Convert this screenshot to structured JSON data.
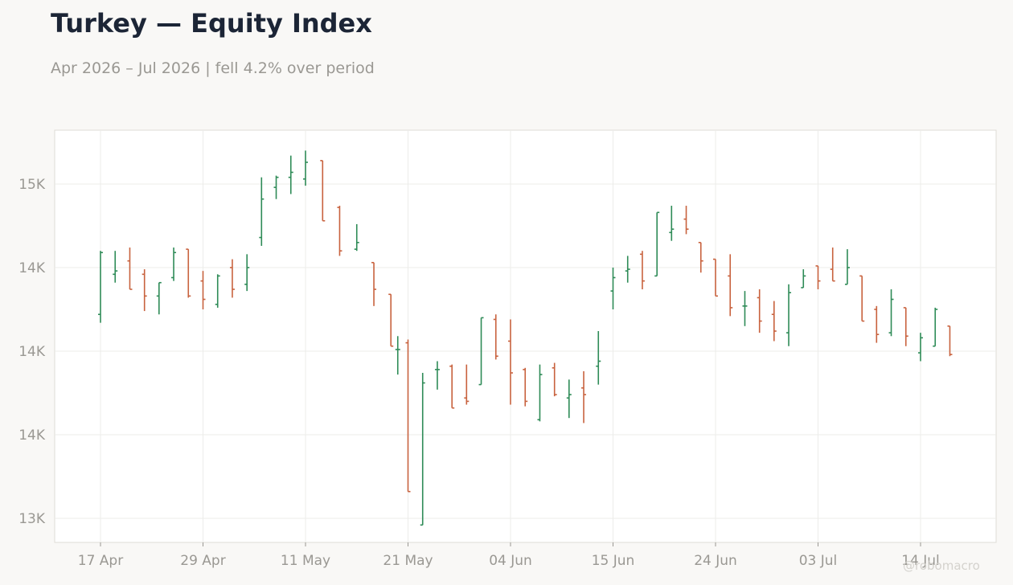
{
  "title": "Turkey — Equity Index",
  "subtitle": "Apr 2026 – Jul 2026 | fell 4.2% over period",
  "watermark": "@robomacro",
  "colors": {
    "up": "#2e8b57",
    "down": "#c8623e",
    "background": "#f9f8f6",
    "grid": "#ececea"
  },
  "chart_data": {
    "type": "ohlc",
    "title": "Turkey — Equity Index",
    "ylim": [
      12950,
      15550
    ],
    "y_ticks": [
      13000,
      13500,
      14000,
      14500,
      15000
    ],
    "y_tick_labels": [
      "13K",
      "14K",
      "14K",
      "14K",
      "15K"
    ],
    "x_ticks": [
      "17 Apr",
      "29 Apr",
      "11 May",
      "21 May",
      "04 Jun",
      "15 Jun",
      "24 Jun",
      "03 Jul",
      "14 Jul"
    ],
    "grid": true,
    "bars": [
      {
        "tick": 0,
        "offset": 0.0,
        "open": 14220,
        "high": 14600,
        "low": 14170,
        "close": 14590
      },
      {
        "tick": 0,
        "offset": 0.143,
        "open": 14460,
        "high": 14600,
        "low": 14410,
        "close": 14480
      },
      {
        "tick": 0,
        "offset": 0.286,
        "open": 14540,
        "high": 14620,
        "low": 14370,
        "close": 14370
      },
      {
        "tick": 0,
        "offset": 0.429,
        "open": 14460,
        "high": 14490,
        "low": 14240,
        "close": 14330
      },
      {
        "tick": 0,
        "offset": 0.571,
        "open": 14330,
        "high": 14410,
        "low": 14220,
        "close": 14410
      },
      {
        "tick": 0,
        "offset": 0.714,
        "open": 14440,
        "high": 14620,
        "low": 14420,
        "close": 14590
      },
      {
        "tick": 0,
        "offset": 0.857,
        "open": 14610,
        "high": 14610,
        "low": 14320,
        "close": 14330
      },
      {
        "tick": 1,
        "offset": 0.0,
        "open": 14420,
        "high": 14480,
        "low": 14250,
        "close": 14310
      },
      {
        "tick": 1,
        "offset": 0.143,
        "open": 14280,
        "high": 14460,
        "low": 14260,
        "close": 14450
      },
      {
        "tick": 1,
        "offset": 0.286,
        "open": 14500,
        "high": 14550,
        "low": 14320,
        "close": 14370
      },
      {
        "tick": 1,
        "offset": 0.429,
        "open": 14400,
        "high": 14580,
        "low": 14360,
        "close": 14500
      },
      {
        "tick": 1,
        "offset": 0.571,
        "open": 14680,
        "high": 15040,
        "low": 14630,
        "close": 14910
      },
      {
        "tick": 1,
        "offset": 0.714,
        "open": 14980,
        "high": 15050,
        "low": 14910,
        "close": 15040
      },
      {
        "tick": 1,
        "offset": 0.857,
        "open": 15040,
        "high": 15170,
        "low": 14940,
        "close": 15070
      },
      {
        "tick": 2,
        "offset": 0.0,
        "open": 15030,
        "high": 15200,
        "low": 14990,
        "close": 15130
      },
      {
        "tick": 2,
        "offset": 0.167,
        "open": 15140,
        "high": 15140,
        "low": 14780,
        "close": 14780
      },
      {
        "tick": 2,
        "offset": 0.333,
        "open": 14860,
        "high": 14870,
        "low": 14570,
        "close": 14600
      },
      {
        "tick": 2,
        "offset": 0.5,
        "open": 14610,
        "high": 14760,
        "low": 14600,
        "close": 14650
      },
      {
        "tick": 2,
        "offset": 0.667,
        "open": 14530,
        "high": 14530,
        "low": 14270,
        "close": 14370
      },
      {
        "tick": 2,
        "offset": 0.833,
        "open": 14340,
        "high": 14340,
        "low": 14030,
        "close": 14030
      },
      {
        "tick": 3,
        "offset": -0.1,
        "open": 14010,
        "high": 14090,
        "low": 13860,
        "close": 14010
      },
      {
        "tick": 3,
        "offset": 0.0,
        "open": 14050,
        "high": 14070,
        "low": 13160,
        "close": 13160
      },
      {
        "tick": 3,
        "offset": 0.143,
        "open": 12960,
        "high": 13870,
        "low": 12960,
        "close": 13810
      },
      {
        "tick": 3,
        "offset": 0.286,
        "open": 13890,
        "high": 13940,
        "low": 13770,
        "close": 13890
      },
      {
        "tick": 3,
        "offset": 0.429,
        "open": 13910,
        "high": 13920,
        "low": 13660,
        "close": 13660
      },
      {
        "tick": 3,
        "offset": 0.571,
        "open": 13720,
        "high": 13920,
        "low": 13680,
        "close": 13700
      },
      {
        "tick": 3,
        "offset": 0.714,
        "open": 13800,
        "high": 14200,
        "low": 13800,
        "close": 14200
      },
      {
        "tick": 3,
        "offset": 0.857,
        "open": 14190,
        "high": 14220,
        "low": 13950,
        "close": 13970
      },
      {
        "tick": 4,
        "offset": 0.0,
        "open": 14060,
        "high": 14190,
        "low": 13680,
        "close": 13870
      },
      {
        "tick": 4,
        "offset": 0.143,
        "open": 13890,
        "high": 13900,
        "low": 13670,
        "close": 13700
      },
      {
        "tick": 4,
        "offset": 0.286,
        "open": 13590,
        "high": 13920,
        "low": 13580,
        "close": 13860
      },
      {
        "tick": 4,
        "offset": 0.429,
        "open": 13900,
        "high": 13930,
        "low": 13730,
        "close": 13740
      },
      {
        "tick": 4,
        "offset": 0.571,
        "open": 13720,
        "high": 13830,
        "low": 13600,
        "close": 13740
      },
      {
        "tick": 4,
        "offset": 0.714,
        "open": 13780,
        "high": 13880,
        "low": 13570,
        "close": 13740
      },
      {
        "tick": 4,
        "offset": 0.857,
        "open": 13910,
        "high": 14120,
        "low": 13800,
        "close": 13940
      },
      {
        "tick": 5,
        "offset": 0.0,
        "open": 14360,
        "high": 14500,
        "low": 14250,
        "close": 14440
      },
      {
        "tick": 5,
        "offset": 0.143,
        "open": 14480,
        "high": 14570,
        "low": 14410,
        "close": 14490
      },
      {
        "tick": 5,
        "offset": 0.286,
        "open": 14580,
        "high": 14600,
        "low": 14370,
        "close": 14420
      },
      {
        "tick": 5,
        "offset": 0.429,
        "open": 14450,
        "high": 14830,
        "low": 14450,
        "close": 14830
      },
      {
        "tick": 5,
        "offset": 0.571,
        "open": 14710,
        "high": 14870,
        "low": 14660,
        "close": 14730
      },
      {
        "tick": 5,
        "offset": 0.714,
        "open": 14790,
        "high": 14870,
        "low": 14700,
        "close": 14730
      },
      {
        "tick": 5,
        "offset": 0.857,
        "open": 14650,
        "high": 14650,
        "low": 14470,
        "close": 14540
      },
      {
        "tick": 6,
        "offset": 0.0,
        "open": 14550,
        "high": 14550,
        "low": 14330,
        "close": 14330
      },
      {
        "tick": 6,
        "offset": 0.143,
        "open": 14450,
        "high": 14580,
        "low": 14210,
        "close": 14260
      },
      {
        "tick": 6,
        "offset": 0.286,
        "open": 14270,
        "high": 14360,
        "low": 14150,
        "close": 14270
      },
      {
        "tick": 6,
        "offset": 0.429,
        "open": 14320,
        "high": 14370,
        "low": 14110,
        "close": 14180
      },
      {
        "tick": 6,
        "offset": 0.571,
        "open": 14220,
        "high": 14300,
        "low": 14060,
        "close": 14120
      },
      {
        "tick": 6,
        "offset": 0.714,
        "open": 14110,
        "high": 14400,
        "low": 14030,
        "close": 14350
      },
      {
        "tick": 6,
        "offset": 0.857,
        "open": 14380,
        "high": 14490,
        "low": 14380,
        "close": 14450
      },
      {
        "tick": 7,
        "offset": 0.0,
        "open": 14510,
        "high": 14510,
        "low": 14370,
        "close": 14420
      },
      {
        "tick": 7,
        "offset": 0.143,
        "open": 14490,
        "high": 14620,
        "low": 14420,
        "close": 14420
      },
      {
        "tick": 7,
        "offset": 0.286,
        "open": 14400,
        "high": 14610,
        "low": 14400,
        "close": 14500
      },
      {
        "tick": 7,
        "offset": 0.429,
        "open": 14450,
        "high": 14450,
        "low": 14180,
        "close": 14180
      },
      {
        "tick": 7,
        "offset": 0.571,
        "open": 14250,
        "high": 14270,
        "low": 14050,
        "close": 14100
      },
      {
        "tick": 7,
        "offset": 0.714,
        "open": 14110,
        "high": 14370,
        "low": 14090,
        "close": 14310
      },
      {
        "tick": 7,
        "offset": 0.857,
        "open": 14260,
        "high": 14260,
        "low": 14030,
        "close": 14090
      },
      {
        "tick": 8,
        "offset": 0.0,
        "open": 13990,
        "high": 14110,
        "low": 13940,
        "close": 14080
      },
      {
        "tick": 8,
        "offset": 0.143,
        "open": 14030,
        "high": 14260,
        "low": 14030,
        "close": 14250
      },
      {
        "tick": 8,
        "offset": 0.286,
        "open": 14150,
        "high": 14150,
        "low": 13970,
        "close": 13980
      }
    ]
  }
}
